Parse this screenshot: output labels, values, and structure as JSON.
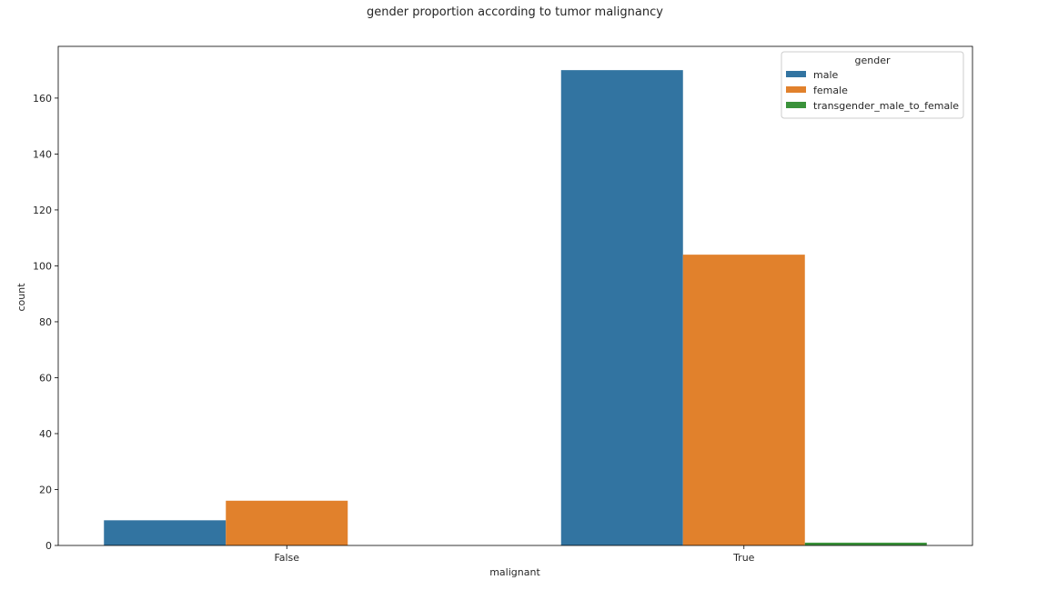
{
  "chart_data": {
    "type": "bar",
    "title": "gender proportion according to tumor malignancy",
    "xlabel": "malignant",
    "ylabel": "count",
    "categories": [
      "False",
      "True"
    ],
    "series": [
      {
        "name": "male",
        "color": "#3274a1",
        "values": [
          9,
          170
        ]
      },
      {
        "name": "female",
        "color": "#e1812c",
        "values": [
          16,
          104
        ]
      },
      {
        "name": "transgender_male_to_female",
        "color": "#3a923a",
        "values": [
          0,
          1
        ]
      }
    ],
    "ylim": [
      0,
      178.5
    ],
    "yticks": [
      0,
      20,
      40,
      60,
      80,
      100,
      120,
      140,
      160
    ],
    "grid": false,
    "legend": {
      "title": "gender",
      "placement": "top-right"
    }
  }
}
